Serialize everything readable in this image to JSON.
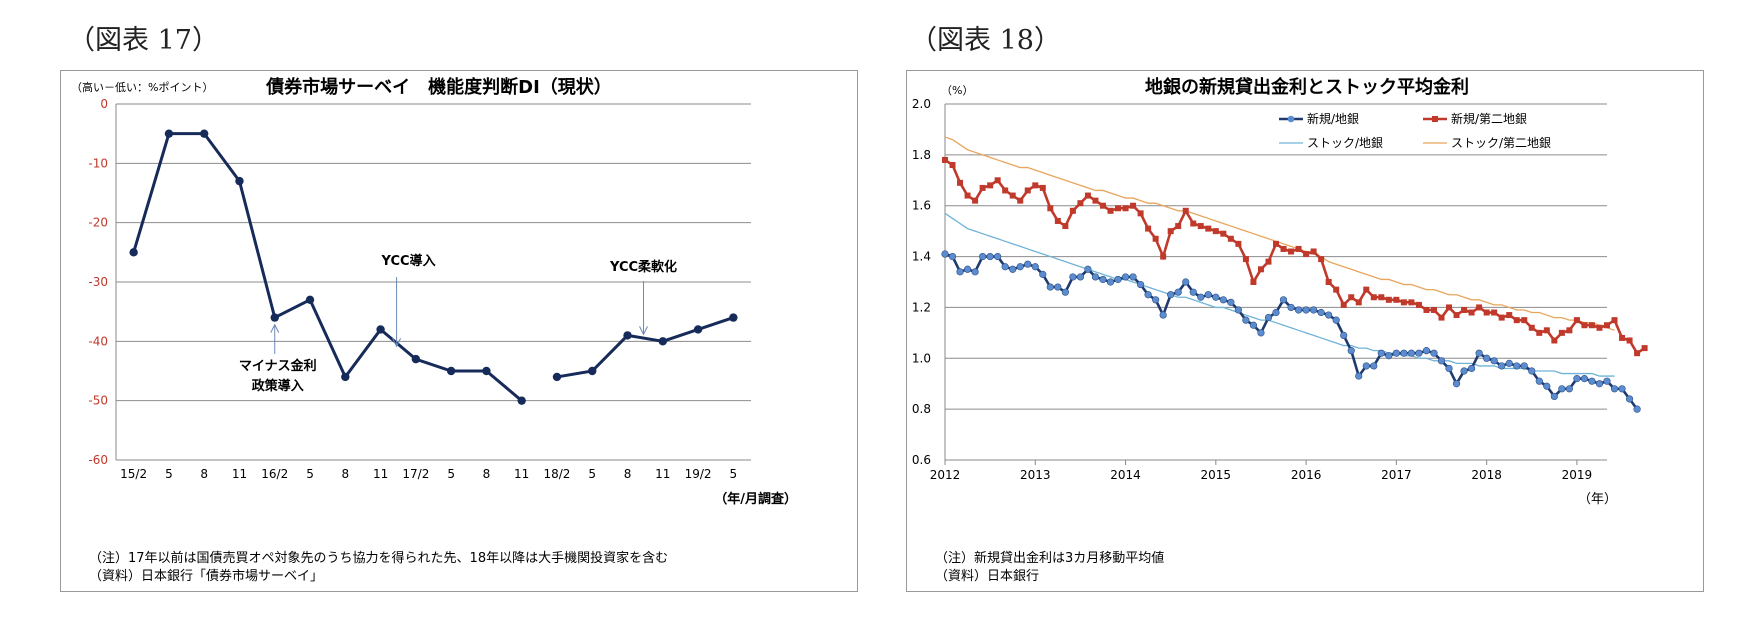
{
  "left": {
    "figure_label": "（図表 17）",
    "notes": [
      "（注）17年以前は国債売買オペ対象先のうち協力を得られた先、18年以降は大手機関投資家を含む",
      "（資料）日本銀行「債券市場サーベイ」"
    ],
    "chart_data": {
      "type": "line",
      "title": "債券市場サーベイ　機能度判断DI（現状）",
      "ylabel": "（高い－低い：%ポイント）",
      "xlabel": "（年/月調査）",
      "ylim": [
        -60,
        0
      ],
      "yticks": [
        "0",
        "-10",
        "-20",
        "-30",
        "-40",
        "-50",
        "-60"
      ],
      "categories": [
        "15/2",
        "5",
        "8",
        "11",
        "16/2",
        "5",
        "8",
        "11",
        "17/2",
        "5",
        "8",
        "11",
        "18/2",
        "5",
        "8",
        "11",
        "19/2",
        "5"
      ],
      "series": [
        {
          "values": [
            -25,
            -5,
            -5,
            -13,
            -36,
            -33,
            -46,
            -38,
            -43,
            -45,
            -45,
            -50,
            -46,
            -45,
            -39,
            -40,
            -38,
            -36
          ]
        }
      ],
      "gaps_after_index": [
        11
      ],
      "grid": true,
      "line_color": "#172b5a",
      "annotations": [
        {
          "text_lines": [
            "マイナス金利",
            "政策導入"
          ],
          "x_index": 4,
          "y": -36
        },
        {
          "text_lines": [
            "YCC導入"
          ],
          "x_index": 7.0,
          "y": -41
        },
        {
          "text_lines": [
            "YCC柔軟化"
          ],
          "x_index": 14.0,
          "y": -39
        }
      ]
    }
  },
  "right": {
    "figure_label": "（図表 18）",
    "notes": [
      "（注）新規貸出金利は3カ月移動平均値",
      "（資料）日本銀行"
    ],
    "chart_data": {
      "type": "line",
      "title": "地銀の新規貸出金利とストック平均金利",
      "ylabel": "（%）",
      "xlabel": "（年）",
      "ylim": [
        0.6,
        2.0
      ],
      "yticks": [
        "2.0",
        "1.8",
        "1.6",
        "1.4",
        "1.2",
        "1.0",
        "0.8",
        "0.6"
      ],
      "x_start_year": 2012,
      "x_end_month_index": 88,
      "xticks": [
        "2012",
        "2013",
        "2014",
        "2015",
        "2016",
        "2017",
        "2018",
        "2019"
      ],
      "grid": true,
      "legend_placement": "top-right",
      "series": [
        {
          "name": "新規/地銀",
          "color": "#1f3a6e",
          "marker": "circle",
          "marker_color": "#5b8ccf",
          "values": [
            1.41,
            1.4,
            1.34,
            1.35,
            1.34,
            1.4,
            1.4,
            1.4,
            1.36,
            1.35,
            1.36,
            1.37,
            1.36,
            1.33,
            1.28,
            1.28,
            1.26,
            1.32,
            1.32,
            1.35,
            1.32,
            1.31,
            1.3,
            1.31,
            1.32,
            1.32,
            1.29,
            1.25,
            1.23,
            1.17,
            1.25,
            1.26,
            1.3,
            1.26,
            1.24,
            1.25,
            1.24,
            1.23,
            1.22,
            1.19,
            1.15,
            1.13,
            1.1,
            1.16,
            1.18,
            1.23,
            1.2,
            1.19,
            1.19,
            1.19,
            1.18,
            1.17,
            1.15,
            1.09,
            1.03,
            0.93,
            0.97,
            0.97,
            1.02,
            1.01,
            1.02,
            1.02,
            1.02,
            1.02,
            1.03,
            1.02,
            0.99,
            0.96,
            0.9,
            0.95,
            0.96,
            1.02,
            1.0,
            0.99,
            0.97,
            0.98,
            0.97,
            0.97,
            0.95,
            0.91,
            0.89,
            0.85,
            0.88,
            0.88,
            0.92,
            0.92,
            0.91,
            0.9,
            0.91,
            0.88,
            0.88,
            0.84,
            0.8
          ]
        },
        {
          "name": "新規/第二地銀",
          "color": "#c0392b",
          "marker": "square",
          "marker_color": "#c0392b",
          "values": [
            1.78,
            1.76,
            1.69,
            1.64,
            1.62,
            1.67,
            1.68,
            1.7,
            1.66,
            1.64,
            1.62,
            1.66,
            1.68,
            1.67,
            1.59,
            1.54,
            1.52,
            1.58,
            1.61,
            1.64,
            1.62,
            1.6,
            1.58,
            1.59,
            1.59,
            1.6,
            1.57,
            1.51,
            1.47,
            1.4,
            1.5,
            1.52,
            1.58,
            1.53,
            1.52,
            1.51,
            1.5,
            1.49,
            1.47,
            1.45,
            1.39,
            1.3,
            1.35,
            1.38,
            1.45,
            1.43,
            1.42,
            1.43,
            1.41,
            1.42,
            1.39,
            1.3,
            1.27,
            1.21,
            1.24,
            1.22,
            1.27,
            1.24,
            1.24,
            1.23,
            1.23,
            1.22,
            1.22,
            1.21,
            1.19,
            1.19,
            1.16,
            1.2,
            1.17,
            1.19,
            1.18,
            1.2,
            1.18,
            1.18,
            1.16,
            1.17,
            1.15,
            1.15,
            1.12,
            1.1,
            1.11,
            1.07,
            1.1,
            1.11,
            1.15,
            1.13,
            1.13,
            1.12,
            1.13,
            1.15,
            1.08,
            1.07,
            1.02,
            1.04
          ]
        },
        {
          "name": "ストック/地銀",
          "color": "#6fb3d6",
          "marker": "none",
          "values": [
            1.57,
            1.55,
            1.53,
            1.51,
            1.5,
            1.49,
            1.48,
            1.47,
            1.46,
            1.45,
            1.44,
            1.43,
            1.42,
            1.41,
            1.4,
            1.39,
            1.38,
            1.37,
            1.36,
            1.35,
            1.34,
            1.33,
            1.32,
            1.31,
            1.31,
            1.3,
            1.29,
            1.28,
            1.27,
            1.26,
            1.25,
            1.24,
            1.24,
            1.23,
            1.22,
            1.21,
            1.2,
            1.2,
            1.19,
            1.18,
            1.17,
            1.16,
            1.15,
            1.15,
            1.14,
            1.13,
            1.12,
            1.11,
            1.1,
            1.09,
            1.08,
            1.07,
            1.06,
            1.05,
            1.05,
            1.04,
            1.04,
            1.03,
            1.03,
            1.02,
            1.02,
            1.01,
            1.01,
            1.0,
            1.0,
            0.99,
            0.99,
            0.99,
            0.98,
            0.98,
            0.98,
            0.97,
            0.97,
            0.97,
            0.96,
            0.96,
            0.96,
            0.96,
            0.95,
            0.95,
            0.95,
            0.95,
            0.94,
            0.94,
            0.94,
            0.94,
            0.94,
            0.93,
            0.93,
            0.93
          ]
        },
        {
          "name": "ストック/第二地銀",
          "color": "#e8a55c",
          "marker": "none",
          "values": [
            1.87,
            1.86,
            1.84,
            1.82,
            1.81,
            1.8,
            1.79,
            1.78,
            1.77,
            1.76,
            1.75,
            1.75,
            1.74,
            1.73,
            1.72,
            1.71,
            1.7,
            1.69,
            1.68,
            1.67,
            1.66,
            1.66,
            1.65,
            1.64,
            1.63,
            1.63,
            1.62,
            1.61,
            1.61,
            1.6,
            1.59,
            1.58,
            1.58,
            1.57,
            1.56,
            1.55,
            1.54,
            1.53,
            1.52,
            1.51,
            1.5,
            1.49,
            1.48,
            1.47,
            1.46,
            1.45,
            1.44,
            1.43,
            1.42,
            1.41,
            1.4,
            1.38,
            1.37,
            1.36,
            1.35,
            1.34,
            1.33,
            1.32,
            1.31,
            1.31,
            1.3,
            1.29,
            1.29,
            1.28,
            1.27,
            1.27,
            1.26,
            1.25,
            1.25,
            1.24,
            1.23,
            1.23,
            1.22,
            1.21,
            1.21,
            1.2,
            1.19,
            1.19,
            1.18,
            1.18,
            1.17,
            1.16,
            1.16,
            1.15,
            1.15,
            1.14,
            1.14,
            1.13,
            1.12,
            1.11
          ]
        }
      ]
    }
  }
}
